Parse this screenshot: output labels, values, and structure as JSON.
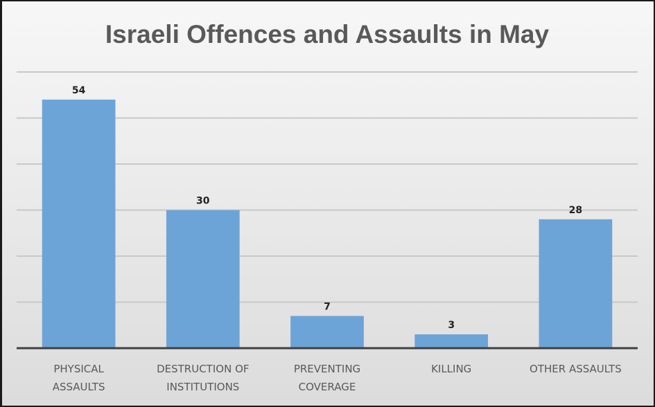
{
  "chart_data": {
    "type": "bar",
    "title": "Israeli Offences and Assaults in May",
    "categories": [
      [
        "PHYSICAL",
        "ASSAULTS"
      ],
      [
        "DESTRUCTION OF",
        "INSTITUTIONS"
      ],
      [
        "PREVENTING",
        "COVERAGE"
      ],
      [
        "KILLING"
      ],
      [
        "OTHER ASSAULTS"
      ]
    ],
    "values": [
      54,
      30,
      7,
      3,
      28
    ],
    "xlabel": "",
    "ylabel": "",
    "ylim": [
      0,
      60
    ],
    "gridlines": [
      10,
      20,
      30,
      40,
      50,
      60
    ],
    "grid": true,
    "bar_color": "#6ca4d8",
    "axis_color": "#404040",
    "grid_color": "#c8c8c8"
  }
}
